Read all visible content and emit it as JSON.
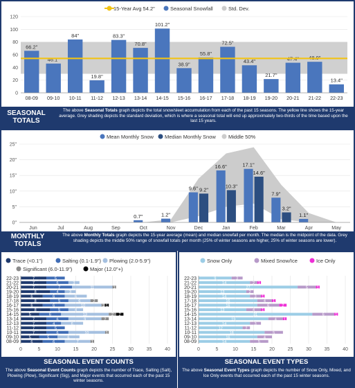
{
  "seasonal": {
    "title": "SEASONAL TOTALS",
    "desc_pre": "The above ",
    "desc_bold": "Seasonal Totals",
    "desc_post": " graph depicts the total snow/sleet accumulation from each of the past 15 seasons. The yellow line shows the 15-year average. Grey shading depicts the standard deviation, which is where a seasonal total will end up approximately two-thirds of the time based upon the last 15 years.",
    "chart_data": {
      "type": "bar",
      "categories": [
        "08-09",
        "09-10",
        "10-11",
        "11-12",
        "12-13",
        "13-14",
        "14-15",
        "15-16",
        "16-17",
        "17-18",
        "18-19",
        "19-20",
        "20-21",
        "21-22",
        "22-23"
      ],
      "values": [
        66.2,
        46.1,
        84,
        19.8,
        83.3,
        70.8,
        101.2,
        38.9,
        55.8,
        72.5,
        43.4,
        21.7,
        47.4,
        48.9,
        13.4
      ],
      "labels": [
        "66.2\"",
        "46.1\"",
        "84\"",
        "19.8\"",
        "83.3\"",
        "70.8\"",
        "101.2\"",
        "38.9\"",
        "55.8\"",
        "72.5\"",
        "43.4\"",
        "21.7\"",
        "47.4\"",
        "48.9\"",
        "13.4\""
      ],
      "average": 54.2,
      "std_band": [
        30,
        80
      ],
      "ylim": [
        0,
        120
      ],
      "yticks": [
        0,
        20,
        40,
        60,
        80,
        100,
        120
      ],
      "legend": [
        {
          "name": "15-Year Avg 54.2\"",
          "color": "#f2c314"
        },
        {
          "name": "Seasonal Snowfall",
          "color": "#4a76bd"
        },
        {
          "name": "Std. Dev.",
          "color": "#cccccc"
        }
      ],
      "grid": true
    }
  },
  "monthly": {
    "title": "MONTHLY TOTALS",
    "desc_pre": "The above ",
    "desc_bold": "Monthly Totals",
    "desc_post": " graph depicts the 15-year average (mean) and median snowfall per month. The median is the midpoint of the data. Grey shading depicts the middle 50% range of snowfall totals per month (25% of winter seasons are higher, 25% of winter seasons are lower).",
    "chart_data": {
      "type": "bar",
      "categories": [
        "Jun",
        "Jul",
        "Aug",
        "Sep",
        "Oct",
        "Nov",
        "Dec",
        "Jan",
        "Feb",
        "Mar",
        "Apr",
        "May"
      ],
      "series": [
        {
          "name": "Mean Monthly Snow",
          "color": "#4a76bd",
          "values": [
            0,
            0,
            0,
            0,
            0.7,
            1.2,
            9.6,
            16.6,
            17.1,
            7.9,
            1.1,
            0
          ]
        },
        {
          "name": "Median Monthly Snow",
          "color": "#2c4e80",
          "values": [
            0,
            0,
            0,
            0,
            0,
            0,
            9.2,
            10.3,
            14.6,
            3.2,
            0,
            0
          ]
        }
      ],
      "mean_labels": [
        "",
        "",
        "",
        "",
        "0.7\"",
        "1.2\"",
        "9.6\"",
        "16.6\"",
        "17.1\"",
        "7.9\"",
        "1.1\"",
        ""
      ],
      "median_labels": [
        "",
        "",
        "",
        "",
        "",
        "",
        "9.2\"",
        "10.3\"",
        "14.6\"",
        "3.2\"",
        "",
        ""
      ],
      "band_low": [
        0,
        0,
        0,
        0,
        0,
        0,
        2,
        5,
        6,
        1,
        0,
        0
      ],
      "band_high": [
        0,
        0,
        0,
        0,
        0,
        1,
        14,
        22,
        24,
        12,
        3,
        0
      ],
      "band_name": "Middle 50%",
      "band_color": "#cccccc",
      "ylim": [
        0,
        25
      ],
      "yticks": [
        0,
        5,
        10,
        15,
        20,
        25
      ],
      "ytick_labels": [
        "0\"",
        "5\"",
        "10\"",
        "15\"",
        "20\"",
        "25\""
      ],
      "grid": true
    }
  },
  "events": {
    "title": "SEASONAL EVENT COUNTS",
    "desc_pre": "The above ",
    "desc_bold": "Seasonal Event Counts",
    "desc_post": " graph depicts the number of Trace, Salting (Salt), Plowing (Plow), Significant (Sig), and Major events that occurred each of the past 15 winter seasons.",
    "chart_data": {
      "type": "bar",
      "orientation": "horizontal",
      "stacked": true,
      "categories": [
        "22-23",
        "21-22",
        "20-21",
        "19-20",
        "18-19",
        "17-18",
        "16-17",
        "15-16",
        "14-15",
        "13-14",
        "12-13",
        "11-12",
        "10-11",
        "09-10",
        "08-09"
      ],
      "series": [
        {
          "name": "Trace (<0.1\")",
          "color": "#1f3a6e",
          "values": [
            7,
            7,
            7,
            8,
            6,
            8,
            6,
            8,
            5,
            7,
            7,
            7,
            7,
            5,
            6
          ]
        },
        {
          "name": "Salting (0.1-1.9\")",
          "color": "#3f6cb5",
          "values": [
            5,
            6,
            7,
            4,
            6,
            5,
            6,
            5,
            6,
            6,
            4,
            5,
            6,
            5,
            6
          ]
        },
        {
          "name": "Plowing (2.0-5.9\")",
          "color": "#a5c0e0",
          "values": [
            0,
            3,
            11,
            3,
            6,
            6,
            10,
            4,
            13,
            9,
            6,
            0,
            10,
            6,
            7
          ]
        },
        {
          "name": "Significant (6.0-11.9\")",
          "color": "#8a8a8a",
          "values": [
            0,
            0,
            1,
            0,
            0,
            2,
            1,
            0,
            2,
            2,
            0,
            0,
            1,
            0,
            1
          ]
        },
        {
          "name": "Major (12.0\"+)",
          "color": "#000000",
          "values": [
            0,
            0,
            0,
            0,
            0,
            0,
            1,
            0,
            2,
            0,
            0,
            0,
            0,
            0,
            0
          ]
        }
      ],
      "xlim": [
        0,
        40
      ],
      "xticks": [
        0,
        5,
        10,
        15,
        20,
        25,
        30,
        35,
        40
      ]
    }
  },
  "types": {
    "title": "SEASONAL EVENT TYPES",
    "desc_pre": "The above ",
    "desc_bold": "Seasonal Event Types",
    "desc_post": " graph depicts the number of Snow Only, Mixed, and Ice Only events that occurred each of the past 15 winter seasons.",
    "chart_data": {
      "type": "bar",
      "orientation": "horizontal",
      "stacked": true,
      "categories": [
        "22-23",
        "21-22",
        "20-21",
        "19-20",
        "18-19",
        "17-18",
        "16-17",
        "15-16",
        "14-15",
        "13-14",
        "12-13",
        "11-12",
        "10-11",
        "09-10",
        "08-09"
      ],
      "series": [
        {
          "name": "Snow Only",
          "color": "#9ccde6",
          "values": [
            9,
            14,
            27,
            13,
            14,
            16,
            16,
            13,
            31,
            19,
            14,
            12,
            18,
            16,
            14
          ]
        },
        {
          "name": "Mixed Snow/Ice",
          "color": "#b79ac9",
          "values": [
            3,
            2,
            5,
            2,
            3,
            4,
            6,
            4,
            6,
            4,
            3,
            2,
            5,
            4,
            5
          ]
        },
        {
          "name": "Ice Only",
          "color": "#ee2fd6",
          "values": [
            0,
            1,
            1,
            0,
            1,
            1,
            2,
            1,
            1,
            1,
            0,
            0,
            0,
            0,
            0
          ]
        }
      ],
      "xlim": [
        0,
        40
      ],
      "xticks": [
        0,
        5,
        10,
        15,
        20,
        25,
        30,
        35,
        40
      ]
    }
  }
}
